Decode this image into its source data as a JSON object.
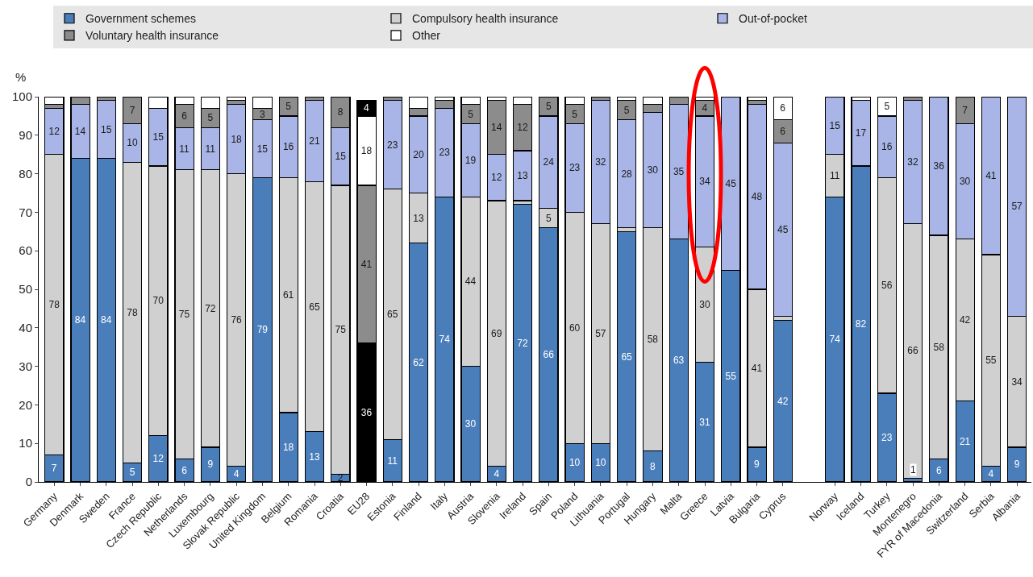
{
  "chart_data": {
    "type": "bar",
    "stacked": true,
    "ylabel": "%",
    "categories": [
      "Germany",
      "Denmark",
      "Sweden",
      "France",
      "Czech Republic",
      "Netherlands",
      "Luxembourg",
      "Slovak Republic",
      "United Kingdom",
      "Belgium",
      "Romania",
      "Croatia",
      "EU28",
      "Estonia",
      "Finland",
      "Italy",
      "Austria",
      "Slovenia",
      "Ireland",
      "Spain",
      "Poland",
      "Lithuania",
      "Portugal",
      "Hungary",
      "Malta",
      "Greece",
      "Latvia",
      "Bulgaria",
      "Cyprus",
      null,
      "Norway",
      "Iceland",
      "Turkey",
      "Montenegro",
      "FYR of Macedonia",
      "Switzerland",
      "Serbia",
      "Albania"
    ],
    "ylim": [
      0,
      100
    ],
    "yticks": [
      0,
      10,
      20,
      30,
      40,
      50,
      60,
      70,
      80,
      90,
      100
    ],
    "legend": "top",
    "series": [
      {
        "name": "Government schemes",
        "colors": [
          "#4a7ebb",
          "#4a7ebb",
          "#4a7ebb",
          "#4a7ebb",
          "#4a7ebb",
          "#4a7ebb",
          "#4a7ebb",
          "#4a7ebb",
          "#4a7ebb",
          "#4a7ebb",
          "#4a7ebb",
          "#4a7ebb",
          "#000000",
          "#4a7ebb",
          "#4a7ebb",
          "#4a7ebb",
          "#4a7ebb",
          "#4a7ebb",
          "#4a7ebb",
          "#4a7ebb",
          "#4a7ebb",
          "#4a7ebb",
          "#4a7ebb",
          "#4a7ebb",
          "#4a7ebb",
          "#4a7ebb",
          "#4a7ebb",
          "#4a7ebb",
          "#4a7ebb",
          "#4a7ebb",
          "#4a7ebb",
          "#4a7ebb",
          "#4a7ebb",
          "#4a7ebb",
          "#4a7ebb",
          "#4a7ebb",
          "#4a7ebb",
          "#4a7ebb"
        ],
        "values": [
          7,
          84,
          84,
          5,
          12,
          6,
          9,
          4,
          79,
          18,
          13,
          2,
          36,
          11,
          62,
          74,
          30,
          4,
          72,
          66,
          10,
          10,
          65,
          8,
          63,
          31,
          55,
          9,
          42,
          null,
          74,
          82,
          23,
          1,
          6,
          21,
          4,
          9
        ],
        "value_labels": [
          "7",
          "84",
          "84",
          "5",
          "12",
          "6",
          "9",
          "4",
          "79",
          "18",
          "13",
          "2",
          "36",
          "11",
          "62",
          "74",
          "30",
          "4",
          "72",
          "66",
          "10",
          "10",
          "65",
          "8",
          "63",
          "31",
          "55",
          "9",
          "42",
          null,
          "74",
          "82",
          "23",
          "1",
          "6",
          "21",
          "4",
          "9"
        ]
      },
      {
        "name": "Compulsory health insurance",
        "colors": [
          "#d0d0d0",
          "#d0d0d0",
          "#d0d0d0",
          "#d0d0d0",
          "#d0d0d0",
          "#d0d0d0",
          "#d0d0d0",
          "#d0d0d0",
          "#d0d0d0",
          "#d0d0d0",
          "#d0d0d0",
          "#d0d0d0",
          "#8c8c8c",
          "#d0d0d0",
          "#d0d0d0",
          "#d0d0d0",
          "#d0d0d0",
          "#d0d0d0",
          "#d0d0d0",
          "#d0d0d0",
          "#d0d0d0",
          "#d0d0d0",
          "#d0d0d0",
          "#d0d0d0",
          "#d0d0d0",
          "#d0d0d0",
          "#d0d0d0",
          "#d0d0d0",
          "#d0d0d0",
          "#d0d0d0",
          "#d0d0d0",
          "#d0d0d0",
          "#d0d0d0",
          "#d0d0d0",
          "#d0d0d0",
          "#d0d0d0",
          "#d0d0d0",
          "#d0d0d0"
        ],
        "values": [
          78,
          null,
          null,
          78,
          70,
          75,
          72,
          76,
          null,
          61,
          65,
          75,
          41,
          65,
          13,
          null,
          44,
          69,
          1,
          5,
          60,
          57,
          1,
          58,
          null,
          30,
          null,
          41,
          1,
          null,
          11,
          null,
          56,
          66,
          58,
          42,
          55,
          34
        ],
        "value_labels": [
          "78",
          null,
          null,
          "78",
          "70",
          "75",
          "72",
          "76",
          null,
          "61",
          "65",
          "75",
          "41",
          "65",
          "13",
          null,
          "44",
          "69",
          null,
          "5",
          "60",
          "57",
          null,
          "58",
          null,
          "30",
          null,
          "41",
          null,
          null,
          "11",
          null,
          "56",
          "66",
          "58",
          "42",
          "55",
          "34"
        ]
      },
      {
        "name": "Out-of-pocket",
        "colors": [
          "#a8b5e6",
          "#a8b5e6",
          "#a8b5e6",
          "#a8b5e6",
          "#a8b5e6",
          "#a8b5e6",
          "#a8b5e6",
          "#a8b5e6",
          "#a8b5e6",
          "#a8b5e6",
          "#a8b5e6",
          "#a8b5e6",
          "#ffffff",
          "#a8b5e6",
          "#a8b5e6",
          "#a8b5e6",
          "#a8b5e6",
          "#a8b5e6",
          "#a8b5e6",
          "#a8b5e6",
          "#a8b5e6",
          "#a8b5e6",
          "#a8b5e6",
          "#a8b5e6",
          "#a8b5e6",
          "#a8b5e6",
          "#a8b5e6",
          "#a8b5e6",
          "#a8b5e6",
          "#a8b5e6",
          "#a8b5e6",
          "#a8b5e6",
          "#a8b5e6",
          "#a8b5e6",
          "#a8b5e6",
          "#a8b5e6",
          "#a8b5e6",
          "#a8b5e6"
        ],
        "values": [
          12,
          14,
          15,
          10,
          15,
          11,
          11,
          18,
          15,
          16,
          21,
          15,
          18,
          23,
          20,
          23,
          19,
          12,
          13,
          24,
          23,
          32,
          28,
          30,
          35,
          34,
          45,
          48,
          45,
          null,
          15,
          17,
          16,
          32,
          36,
          30,
          41,
          57
        ],
        "value_labels": [
          "12",
          "14",
          "15",
          "10",
          "15",
          "11",
          "11",
          "18",
          "15",
          "16",
          "21",
          "15",
          "18",
          "23",
          "20",
          "23",
          "19",
          "12",
          "13",
          "24",
          "23",
          "32",
          "28",
          "30",
          "35",
          "34",
          "45",
          "48",
          "45",
          null,
          "15",
          "17",
          "16",
          "32",
          "36",
          "30",
          "41",
          "57"
        ]
      },
      {
        "name": "Voluntary health insurance",
        "colors": [
          "#8c8c8c",
          "#8c8c8c",
          "#8c8c8c",
          "#8c8c8c",
          "#8c8c8c",
          "#8c8c8c",
          "#8c8c8c",
          "#8c8c8c",
          "#8c8c8c",
          "#8c8c8c",
          "#8c8c8c",
          "#8c8c8c",
          "#000000",
          "#8c8c8c",
          "#8c8c8c",
          "#8c8c8c",
          "#8c8c8c",
          "#8c8c8c",
          "#8c8c8c",
          "#8c8c8c",
          "#8c8c8c",
          "#8c8c8c",
          "#8c8c8c",
          "#8c8c8c",
          "#8c8c8c",
          "#8c8c8c",
          "#8c8c8c",
          "#8c8c8c",
          "#8c8c8c",
          "#8c8c8c",
          "#8c8c8c",
          "#8c8c8c",
          "#8c8c8c",
          "#8c8c8c",
          "#8c8c8c",
          "#8c8c8c",
          "#8c8c8c",
          "#8c8c8c"
        ],
        "values": [
          1,
          2,
          1,
          7,
          null,
          6,
          5,
          1,
          3,
          5,
          1,
          8,
          4,
          1,
          2,
          2,
          5,
          14,
          12,
          5,
          5,
          1,
          5,
          2,
          2,
          4,
          null,
          1,
          6,
          null,
          null,
          null,
          null,
          1,
          null,
          7,
          null,
          null
        ],
        "value_labels": [
          null,
          null,
          null,
          "7",
          null,
          "6",
          "5",
          null,
          "3",
          "5",
          null,
          "8",
          "4",
          null,
          null,
          null,
          "5",
          "14",
          "12",
          "5",
          "5",
          null,
          "5",
          null,
          null,
          "4",
          null,
          null,
          "6",
          null,
          null,
          null,
          null,
          null,
          null,
          "7",
          null,
          null
        ]
      },
      {
        "name": "Other",
        "colors": [
          "#ffffff",
          "#ffffff",
          "#ffffff",
          "#ffffff",
          "#ffffff",
          "#ffffff",
          "#ffffff",
          "#ffffff",
          "#ffffff",
          "#ffffff",
          "#ffffff",
          "#ffffff",
          "#ffffff",
          "#ffffff",
          "#ffffff",
          "#ffffff",
          "#ffffff",
          "#ffffff",
          "#ffffff",
          "#ffffff",
          "#ffffff",
          "#ffffff",
          "#ffffff",
          "#ffffff",
          "#ffffff",
          "#ffffff",
          "#ffffff",
          "#ffffff",
          "#ffffff",
          "#ffffff",
          "#ffffff",
          "#ffffff",
          "#ffffff",
          "#ffffff",
          "#ffffff",
          "#ffffff",
          "#ffffff",
          "#ffffff"
        ],
        "values": [
          2,
          null,
          null,
          null,
          3,
          2,
          3,
          1,
          3,
          null,
          null,
          null,
          null,
          null,
          3,
          1,
          2,
          1,
          2,
          null,
          2,
          null,
          1,
          2,
          null,
          1,
          null,
          1,
          6,
          null,
          null,
          1,
          5,
          null,
          null,
          null,
          null,
          null
        ],
        "value_labels": [
          null,
          null,
          null,
          null,
          null,
          null,
          null,
          null,
          null,
          null,
          null,
          null,
          null,
          null,
          null,
          null,
          null,
          null,
          null,
          null,
          null,
          null,
          null,
          null,
          null,
          null,
          null,
          null,
          "6",
          null,
          null,
          null,
          "5",
          null,
          null,
          null,
          null,
          null
        ]
      }
    ]
  }
}
